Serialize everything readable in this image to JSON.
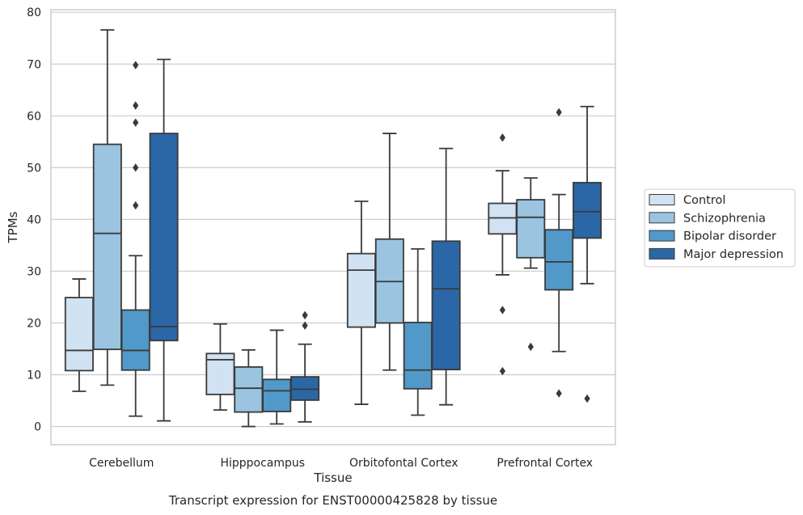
{
  "chart_data": {
    "type": "box",
    "title": "",
    "caption": "Transcript expression for ENST00000425828 by tissue",
    "xlabel": "Tissue",
    "ylabel": "TPMs",
    "ylim": [
      -3.5,
      80.5
    ],
    "yticks": [
      0,
      10,
      20,
      30,
      40,
      50,
      60,
      70,
      80
    ],
    "grid": "horizontal",
    "legend_position": "right",
    "categories": [
      "Cerebellum",
      "Hipppocampus",
      "Orbitofontal Cortex",
      "Prefrontal Cortex"
    ],
    "series": [
      {
        "name": "Control",
        "color": "#d1e2f2",
        "boxes": [
          {
            "min": 6.8,
            "q1": 10.8,
            "median": 14.7,
            "q3": 24.9,
            "max": 28.5,
            "outliers": []
          },
          {
            "min": 3.2,
            "q1": 6.2,
            "median": 12.9,
            "q3": 14.1,
            "max": 19.8,
            "outliers": []
          },
          {
            "min": 4.3,
            "q1": 19.2,
            "median": 30.2,
            "q3": 33.4,
            "max": 43.5,
            "outliers": []
          },
          {
            "min": 29.3,
            "q1": 37.2,
            "median": 40.3,
            "q3": 43.1,
            "max": 49.4,
            "outliers": [
              55.8,
              22.5,
              10.7
            ]
          }
        ]
      },
      {
        "name": "Schizophrenia",
        "color": "#9ac4e0",
        "boxes": [
          {
            "min": 8.0,
            "q1": 14.9,
            "median": 37.3,
            "q3": 54.5,
            "max": 76.6,
            "outliers": []
          },
          {
            "min": 0.0,
            "q1": 2.8,
            "median": 7.4,
            "q3": 11.5,
            "max": 14.8,
            "outliers": []
          },
          {
            "min": 10.9,
            "q1": 20.0,
            "median": 28.0,
            "q3": 36.2,
            "max": 56.6,
            "outliers": []
          },
          {
            "min": 30.6,
            "q1": 32.6,
            "median": 40.4,
            "q3": 43.8,
            "max": 48.0,
            "outliers": [
              15.4
            ]
          }
        ]
      },
      {
        "name": "Bipolar disorder",
        "color": "#5199c8",
        "boxes": [
          {
            "min": 2.0,
            "q1": 10.9,
            "median": 14.7,
            "q3": 22.5,
            "max": 33.0,
            "outliers": [
              69.8,
              62.0,
              50.0,
              58.7,
              42.7
            ]
          },
          {
            "min": 0.5,
            "q1": 2.9,
            "median": 6.9,
            "q3": 9.1,
            "max": 18.6,
            "outliers": []
          },
          {
            "min": 2.2,
            "q1": 7.3,
            "median": 10.9,
            "q3": 20.1,
            "max": 34.3,
            "outliers": []
          },
          {
            "min": 14.5,
            "q1": 26.4,
            "median": 31.8,
            "q3": 38.0,
            "max": 44.8,
            "outliers": [
              60.7,
              6.4
            ]
          }
        ]
      },
      {
        "name": "Major depression",
        "color": "#2b67a6",
        "boxes": [
          {
            "min": 1.1,
            "q1": 16.6,
            "median": 19.3,
            "q3": 56.6,
            "max": 70.9,
            "outliers": []
          },
          {
            "min": 0.9,
            "q1": 5.1,
            "median": 7.2,
            "q3": 9.6,
            "max": 15.9,
            "outliers": [
              21.5,
              19.5
            ]
          },
          {
            "min": 4.2,
            "q1": 11.0,
            "median": 26.6,
            "q3": 35.8,
            "max": 53.7,
            "outliers": []
          },
          {
            "min": 27.6,
            "q1": 36.4,
            "median": 41.5,
            "q3": 47.1,
            "max": 61.8,
            "outliers": [
              5.4
            ]
          }
        ]
      }
    ]
  }
}
